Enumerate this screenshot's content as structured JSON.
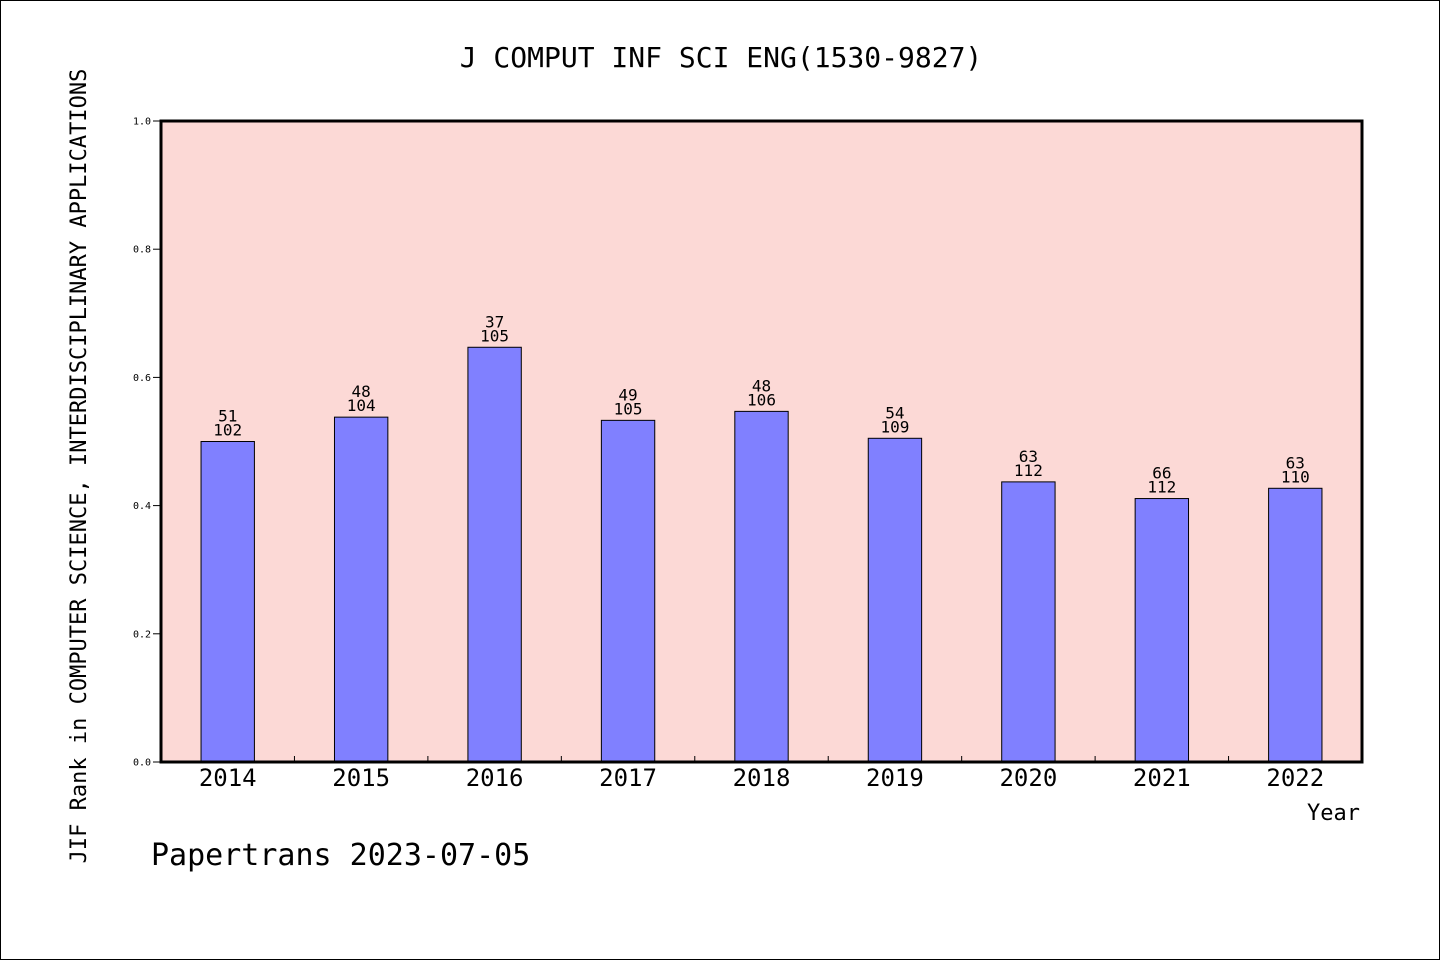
{
  "chart_data": {
    "type": "bar",
    "title": "J COMPUT INF SCI ENG(1530-9827)",
    "xlabel": "Year",
    "ylabel": "JIF Rank in COMPUTER SCIENCE, INTERDISCIPLINARY APPLICATIONS",
    "ylim": [
      0.0,
      1.0
    ],
    "yticks": [
      "0.0",
      "0.2",
      "0.4",
      "0.6",
      "0.8",
      "1.0"
    ],
    "categories": [
      "2014",
      "2015",
      "2016",
      "2017",
      "2018",
      "2019",
      "2020",
      "2021",
      "2022"
    ],
    "values": [
      0.5,
      0.538,
      0.647,
      0.533,
      0.547,
      0.505,
      0.437,
      0.411,
      0.427
    ],
    "rank_labels": [
      "51",
      "48",
      "37",
      "49",
      "48",
      "54",
      "63",
      "66",
      "63"
    ],
    "total_labels": [
      "102",
      "104",
      "105",
      "105",
      "106",
      "109",
      "112",
      "112",
      "110"
    ],
    "grid": false,
    "colors": {
      "plot_background": "#fcd9d6",
      "bar_fill": "#8080ff",
      "bar_stroke": "#000000"
    }
  },
  "footer": "Papertrans 2023-07-05"
}
